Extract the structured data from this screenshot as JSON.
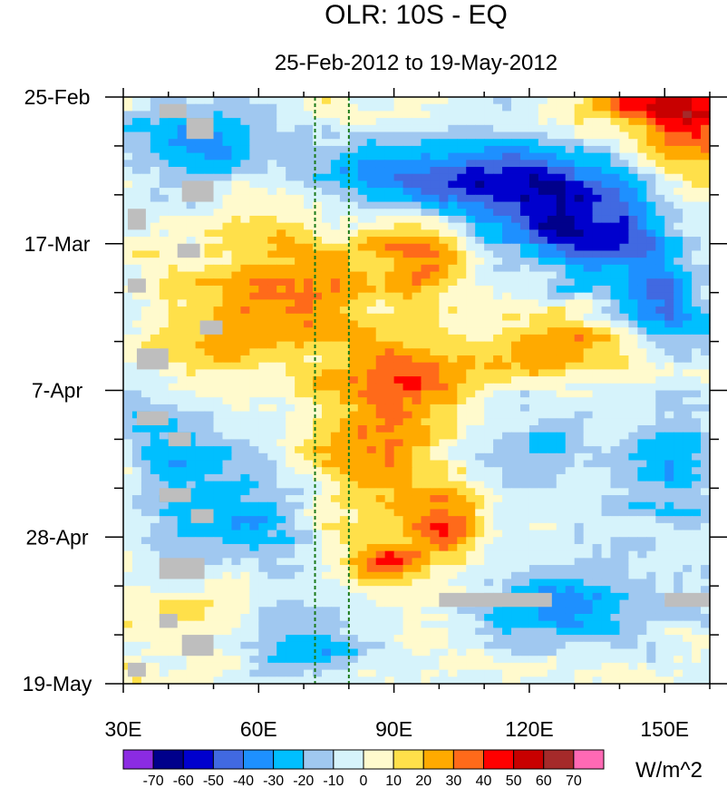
{
  "chart_data": {
    "type": "heatmap",
    "title": "OLR: 10S - EQ",
    "subtitle": "25-Feb-2012 to 19-May-2012",
    "xlabel": "",
    "ylabel": "",
    "x_range": [
      30,
      160
    ],
    "y_range_days": [
      0,
      84
    ],
    "x_ticks": [
      {
        "value": 30,
        "label": "30E"
      },
      {
        "value": 60,
        "label": "60E"
      },
      {
        "value": 90,
        "label": "90E"
      },
      {
        "value": 120,
        "label": "120E"
      },
      {
        "value": 150,
        "label": "150E"
      }
    ],
    "y_ticks": [
      {
        "day": 0,
        "label": "25-Feb"
      },
      {
        "day": 21,
        "label": "17-Mar"
      },
      {
        "day": 42,
        "label": "7-Apr"
      },
      {
        "day": 63,
        "label": "28-Apr"
      },
      {
        "day": 84,
        "label": "19-May"
      }
    ],
    "reference_lines_lon": [
      72.5,
      80
    ],
    "reference_line_color": "#1a7a1a",
    "missing_color": "#bebebe",
    "colorbar": {
      "units": "W/m^2",
      "levels": [
        -70,
        -60,
        -50,
        -40,
        -30,
        -20,
        -10,
        0,
        10,
        20,
        30,
        40,
        50,
        60,
        70
      ],
      "colors": [
        "#8b2be2",
        "#00008b",
        "#0000cd",
        "#4169e1",
        "#1e90ff",
        "#00bfff",
        "#a0c8f0",
        "#d6f3fb",
        "#fffacd",
        "#ffe04a",
        "#ffaa00",
        "#ff6a1a",
        "#ff0000",
        "#c80000",
        "#a52a2a",
        "#ff69b4"
      ]
    },
    "anomaly_features": [
      {
        "lon": 68,
        "day": 28,
        "value": 32,
        "sx": 14,
        "sy": 7
      },
      {
        "lon": 97,
        "day": 22,
        "value": 38,
        "sx": 7,
        "sy": 4
      },
      {
        "lon": 92,
        "day": 40,
        "value": 38,
        "sx": 10,
        "sy": 4
      },
      {
        "lon": 126,
        "day": 36,
        "value": 33,
        "sx": 11,
        "sy": 3
      },
      {
        "lon": 85,
        "day": 53,
        "value": 28,
        "sx": 12,
        "sy": 7
      },
      {
        "lon": 102,
        "day": 61,
        "value": 42,
        "sx": 6,
        "sy": 3
      },
      {
        "lon": 88,
        "day": 67,
        "value": 38,
        "sx": 6,
        "sy": 2.5
      },
      {
        "lon": 155,
        "day": 5,
        "value": 40,
        "sx": 8,
        "sy": 7
      },
      {
        "lon": 145,
        "day": 1,
        "value": 32,
        "sx": 10,
        "sy": 2
      },
      {
        "lon": 52,
        "day": 75,
        "value": 15,
        "sx": 14,
        "sy": 7
      },
      {
        "lon": 60,
        "day": 12,
        "value": 16,
        "sx": 10,
        "sy": 4
      },
      {
        "lon": 48,
        "day": 38,
        "value": 16,
        "sx": 8,
        "sy": 6
      },
      {
        "lon": 105,
        "day": 11,
        "value": -45,
        "sx": 28,
        "sy": 3.5
      },
      {
        "lon": 125,
        "day": 17,
        "value": -42,
        "sx": 18,
        "sy": 4
      },
      {
        "lon": 48,
        "day": 6,
        "value": -32,
        "sx": 14,
        "sy": 5
      },
      {
        "lon": 150,
        "day": 30,
        "value": -45,
        "sx": 7,
        "sy": 4
      },
      {
        "lon": 138,
        "day": 22,
        "value": -30,
        "sx": 10,
        "sy": 4
      },
      {
        "lon": 55,
        "day": 60,
        "value": -28,
        "sx": 14,
        "sy": 8
      },
      {
        "lon": 128,
        "day": 73,
        "value": -36,
        "sx": 14,
        "sy": 4
      },
      {
        "lon": 68,
        "day": 78,
        "value": -30,
        "sx": 12,
        "sy": 4
      },
      {
        "lon": 150,
        "day": 54,
        "value": -26,
        "sx": 8,
        "sy": 7
      },
      {
        "lon": 40,
        "day": 48,
        "value": -22,
        "sx": 8,
        "sy": 5
      },
      {
        "lon": 120,
        "day": 50,
        "value": -18,
        "sx": 9,
        "sy": 5
      }
    ],
    "missing_regions": [
      {
        "lon": [
          100,
          125
        ],
        "day": [
          71,
          73
        ]
      },
      {
        "lon": [
          150,
          160
        ],
        "day": [
          71,
          73
        ]
      },
      {
        "lon": [
          38,
          44
        ],
        "day": [
          1,
          3
        ]
      },
      {
        "lon": [
          44,
          50
        ],
        "day": [
          3,
          6
        ]
      },
      {
        "lon": [
          43,
          50
        ],
        "day": [
          12,
          15
        ]
      },
      {
        "lon": [
          31,
          35
        ],
        "day": [
          16,
          19
        ]
      },
      {
        "lon": [
          42,
          47
        ],
        "day": [
          21,
          23
        ]
      },
      {
        "lon": [
          31,
          35
        ],
        "day": [
          26,
          28
        ]
      },
      {
        "lon": [
          47,
          52
        ],
        "day": [
          32,
          34
        ]
      },
      {
        "lon": [
          33,
          40
        ],
        "day": [
          36,
          39
        ]
      },
      {
        "lon": [
          33,
          40
        ],
        "day": [
          45,
          47
        ]
      },
      {
        "lon": [
          40,
          45
        ],
        "day": [
          48,
          50
        ]
      },
      {
        "lon": [
          38,
          45
        ],
        "day": [
          56,
          58
        ]
      },
      {
        "lon": [
          45,
          50
        ],
        "day": [
          59,
          61
        ]
      },
      {
        "lon": [
          38,
          48
        ],
        "day": [
          66,
          69
        ]
      },
      {
        "lon": [
          38,
          42
        ],
        "day": [
          74,
          76
        ]
      },
      {
        "lon": [
          43,
          50
        ],
        "day": [
          77,
          80
        ]
      },
      {
        "lon": [
          31,
          35
        ],
        "day": [
          81,
          83
        ]
      }
    ]
  }
}
